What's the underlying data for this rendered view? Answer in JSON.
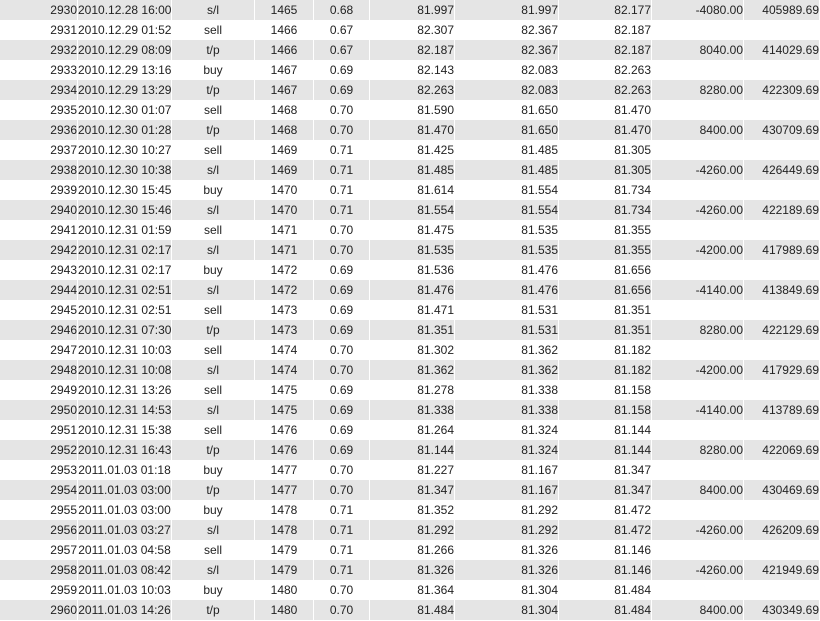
{
  "colors": {
    "stripe_row": "#e5e5e5",
    "plain_row": "#ffffff",
    "text": "#222222",
    "cell_separator": "#ffffff"
  },
  "table": {
    "column_keys": [
      "num",
      "time",
      "type",
      "order",
      "size",
      "price",
      "sl",
      "tp",
      "profit",
      "balance"
    ],
    "rows": [
      {
        "num": "2930",
        "time": "2010.12.28 16:00",
        "type": "s/l",
        "order": "1465",
        "size": "0.68",
        "price": "81.997",
        "sl": "81.997",
        "tp": "82.177",
        "profit": "-4080.00",
        "balance": "405989.69"
      },
      {
        "num": "2931",
        "time": "2010.12.29 01:52",
        "type": "sell",
        "order": "1466",
        "size": "0.67",
        "price": "82.307",
        "sl": "82.367",
        "tp": "82.187",
        "profit": "",
        "balance": ""
      },
      {
        "num": "2932",
        "time": "2010.12.29 08:09",
        "type": "t/p",
        "order": "1466",
        "size": "0.67",
        "price": "82.187",
        "sl": "82.367",
        "tp": "82.187",
        "profit": "8040.00",
        "balance": "414029.69"
      },
      {
        "num": "2933",
        "time": "2010.12.29 13:16",
        "type": "buy",
        "order": "1467",
        "size": "0.69",
        "price": "82.143",
        "sl": "82.083",
        "tp": "82.263",
        "profit": "",
        "balance": ""
      },
      {
        "num": "2934",
        "time": "2010.12.29 13:29",
        "type": "t/p",
        "order": "1467",
        "size": "0.69",
        "price": "82.263",
        "sl": "82.083",
        "tp": "82.263",
        "profit": "8280.00",
        "balance": "422309.69"
      },
      {
        "num": "2935",
        "time": "2010.12.30 01:07",
        "type": "sell",
        "order": "1468",
        "size": "0.70",
        "price": "81.590",
        "sl": "81.650",
        "tp": "81.470",
        "profit": "",
        "balance": ""
      },
      {
        "num": "2936",
        "time": "2010.12.30 01:28",
        "type": "t/p",
        "order": "1468",
        "size": "0.70",
        "price": "81.470",
        "sl": "81.650",
        "tp": "81.470",
        "profit": "8400.00",
        "balance": "430709.69"
      },
      {
        "num": "2937",
        "time": "2010.12.30 10:27",
        "type": "sell",
        "order": "1469",
        "size": "0.71",
        "price": "81.425",
        "sl": "81.485",
        "tp": "81.305",
        "profit": "",
        "balance": ""
      },
      {
        "num": "2938",
        "time": "2010.12.30 10:38",
        "type": "s/l",
        "order": "1469",
        "size": "0.71",
        "price": "81.485",
        "sl": "81.485",
        "tp": "81.305",
        "profit": "-4260.00",
        "balance": "426449.69"
      },
      {
        "num": "2939",
        "time": "2010.12.30 15:45",
        "type": "buy",
        "order": "1470",
        "size": "0.71",
        "price": "81.614",
        "sl": "81.554",
        "tp": "81.734",
        "profit": "",
        "balance": ""
      },
      {
        "num": "2940",
        "time": "2010.12.30 15:46",
        "type": "s/l",
        "order": "1470",
        "size": "0.71",
        "price": "81.554",
        "sl": "81.554",
        "tp": "81.734",
        "profit": "-4260.00",
        "balance": "422189.69"
      },
      {
        "num": "2941",
        "time": "2010.12.31 01:59",
        "type": "sell",
        "order": "1471",
        "size": "0.70",
        "price": "81.475",
        "sl": "81.535",
        "tp": "81.355",
        "profit": "",
        "balance": ""
      },
      {
        "num": "2942",
        "time": "2010.12.31 02:17",
        "type": "s/l",
        "order": "1471",
        "size": "0.70",
        "price": "81.535",
        "sl": "81.535",
        "tp": "81.355",
        "profit": "-4200.00",
        "balance": "417989.69"
      },
      {
        "num": "2943",
        "time": "2010.12.31 02:17",
        "type": "buy",
        "order": "1472",
        "size": "0.69",
        "price": "81.536",
        "sl": "81.476",
        "tp": "81.656",
        "profit": "",
        "balance": ""
      },
      {
        "num": "2944",
        "time": "2010.12.31 02:51",
        "type": "s/l",
        "order": "1472",
        "size": "0.69",
        "price": "81.476",
        "sl": "81.476",
        "tp": "81.656",
        "profit": "-4140.00",
        "balance": "413849.69"
      },
      {
        "num": "2945",
        "time": "2010.12.31 02:51",
        "type": "sell",
        "order": "1473",
        "size": "0.69",
        "price": "81.471",
        "sl": "81.531",
        "tp": "81.351",
        "profit": "",
        "balance": ""
      },
      {
        "num": "2946",
        "time": "2010.12.31 07:30",
        "type": "t/p",
        "order": "1473",
        "size": "0.69",
        "price": "81.351",
        "sl": "81.531",
        "tp": "81.351",
        "profit": "8280.00",
        "balance": "422129.69"
      },
      {
        "num": "2947",
        "time": "2010.12.31 10:03",
        "type": "sell",
        "order": "1474",
        "size": "0.70",
        "price": "81.302",
        "sl": "81.362",
        "tp": "81.182",
        "profit": "",
        "balance": ""
      },
      {
        "num": "2948",
        "time": "2010.12.31 10:08",
        "type": "s/l",
        "order": "1474",
        "size": "0.70",
        "price": "81.362",
        "sl": "81.362",
        "tp": "81.182",
        "profit": "-4200.00",
        "balance": "417929.69"
      },
      {
        "num": "2949",
        "time": "2010.12.31 13:26",
        "type": "sell",
        "order": "1475",
        "size": "0.69",
        "price": "81.278",
        "sl": "81.338",
        "tp": "81.158",
        "profit": "",
        "balance": ""
      },
      {
        "num": "2950",
        "time": "2010.12.31 14:53",
        "type": "s/l",
        "order": "1475",
        "size": "0.69",
        "price": "81.338",
        "sl": "81.338",
        "tp": "81.158",
        "profit": "-4140.00",
        "balance": "413789.69"
      },
      {
        "num": "2951",
        "time": "2010.12.31 15:38",
        "type": "sell",
        "order": "1476",
        "size": "0.69",
        "price": "81.264",
        "sl": "81.324",
        "tp": "81.144",
        "profit": "",
        "balance": ""
      },
      {
        "num": "2952",
        "time": "2010.12.31 16:43",
        "type": "t/p",
        "order": "1476",
        "size": "0.69",
        "price": "81.144",
        "sl": "81.324",
        "tp": "81.144",
        "profit": "8280.00",
        "balance": "422069.69"
      },
      {
        "num": "2953",
        "time": "2011.01.03 01:18",
        "type": "buy",
        "order": "1477",
        "size": "0.70",
        "price": "81.227",
        "sl": "81.167",
        "tp": "81.347",
        "profit": "",
        "balance": ""
      },
      {
        "num": "2954",
        "time": "2011.01.03 03:00",
        "type": "t/p",
        "order": "1477",
        "size": "0.70",
        "price": "81.347",
        "sl": "81.167",
        "tp": "81.347",
        "profit": "8400.00",
        "balance": "430469.69"
      },
      {
        "num": "2955",
        "time": "2011.01.03 03:00",
        "type": "buy",
        "order": "1478",
        "size": "0.71",
        "price": "81.352",
        "sl": "81.292",
        "tp": "81.472",
        "profit": "",
        "balance": ""
      },
      {
        "num": "2956",
        "time": "2011.01.03 03:27",
        "type": "s/l",
        "order": "1478",
        "size": "0.71",
        "price": "81.292",
        "sl": "81.292",
        "tp": "81.472",
        "profit": "-4260.00",
        "balance": "426209.69"
      },
      {
        "num": "2957",
        "time": "2011.01.03 04:58",
        "type": "sell",
        "order": "1479",
        "size": "0.71",
        "price": "81.266",
        "sl": "81.326",
        "tp": "81.146",
        "profit": "",
        "balance": ""
      },
      {
        "num": "2958",
        "time": "2011.01.03 08:42",
        "type": "s/l",
        "order": "1479",
        "size": "0.71",
        "price": "81.326",
        "sl": "81.326",
        "tp": "81.146",
        "profit": "-4260.00",
        "balance": "421949.69"
      },
      {
        "num": "2959",
        "time": "2011.01.03 10:03",
        "type": "buy",
        "order": "1480",
        "size": "0.70",
        "price": "81.364",
        "sl": "81.304",
        "tp": "81.484",
        "profit": "",
        "balance": ""
      },
      {
        "num": "2960",
        "time": "2011.01.03 14:26",
        "type": "t/p",
        "order": "1480",
        "size": "0.70",
        "price": "81.484",
        "sl": "81.304",
        "tp": "81.484",
        "profit": "8400.00",
        "balance": "430349.69"
      }
    ]
  }
}
